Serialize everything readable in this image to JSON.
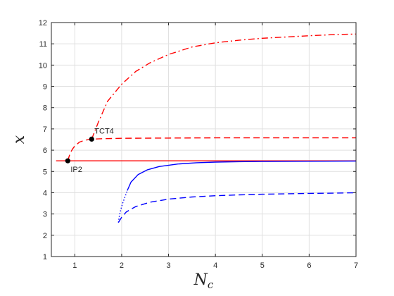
{
  "chart_data": {
    "type": "line",
    "title": "",
    "xlabel": "N",
    "xlabel_subscript": "c",
    "ylabel": "x",
    "xlim": [
      0.5,
      7
    ],
    "ylim": [
      1,
      12
    ],
    "xticks": [
      1,
      2,
      3,
      4,
      5,
      6,
      7
    ],
    "yticks": [
      1,
      2,
      3,
      4,
      5,
      6,
      7,
      8,
      9,
      10,
      11,
      12
    ],
    "grid": true,
    "legend": "none",
    "colors": {
      "red": "#ff0000",
      "blue": "#0000ff",
      "axis": "#262626",
      "grid": "#e0e0e0"
    },
    "series": [
      {
        "color": "#ff0000",
        "style": "solid",
        "x": [
          0.6,
          7.0
        ],
        "y": [
          5.5,
          5.5
        ]
      },
      {
        "color": "#ff0000",
        "style": "dashed",
        "x": [
          0.85,
          0.9,
          0.95,
          1.0,
          1.1,
          1.2,
          1.36,
          1.6,
          2.0,
          3.0,
          4.0,
          5.0,
          6.0,
          7.0
        ],
        "y": [
          5.5,
          5.85,
          6.05,
          6.2,
          6.38,
          6.46,
          6.52,
          6.54,
          6.56,
          6.57,
          6.58,
          6.58,
          6.58,
          6.58
        ]
      },
      {
        "color": "#ff0000",
        "style": "dashdot",
        "x": [
          1.36,
          1.5,
          1.7,
          2.0,
          2.3,
          2.6,
          3.0,
          3.5,
          4.0,
          4.5,
          5.0,
          5.5,
          6.0,
          6.5,
          7.0
        ],
        "y": [
          6.52,
          7.3,
          8.3,
          9.1,
          9.7,
          10.1,
          10.5,
          10.85,
          11.05,
          11.17,
          11.26,
          11.32,
          11.38,
          11.43,
          11.46
        ]
      },
      {
        "color": "#0000ff",
        "style": "dotted",
        "x": [
          1.93,
          1.95,
          1.98,
          2.02,
          2.07,
          2.12
        ],
        "y": [
          2.6,
          2.9,
          3.2,
          3.5,
          3.8,
          4.1
        ]
      },
      {
        "color": "#0000ff",
        "style": "solid",
        "x": [
          2.12,
          2.2,
          2.35,
          2.55,
          2.8,
          3.2,
          3.6,
          4.0,
          4.5,
          5.0,
          6.0,
          7.0
        ],
        "y": [
          4.1,
          4.5,
          4.85,
          5.08,
          5.23,
          5.35,
          5.41,
          5.44,
          5.46,
          5.47,
          5.48,
          5.49
        ]
      },
      {
        "color": "#0000ff",
        "style": "dashed",
        "x": [
          1.93,
          2.0,
          2.1,
          2.3,
          2.6,
          3.0,
          3.5,
          4.0,
          4.5,
          5.0,
          5.5,
          6.0,
          6.5,
          7.0
        ],
        "y": [
          2.6,
          2.85,
          3.1,
          3.35,
          3.55,
          3.7,
          3.8,
          3.86,
          3.9,
          3.93,
          3.95,
          3.97,
          3.98,
          4.0
        ]
      }
    ],
    "points": [
      {
        "label": "IP2",
        "x": 0.85,
        "y": 5.5,
        "label_position": "below-right"
      },
      {
        "label": "TCT4",
        "x": 1.36,
        "y": 6.52,
        "label_position": "above-right"
      }
    ]
  }
}
